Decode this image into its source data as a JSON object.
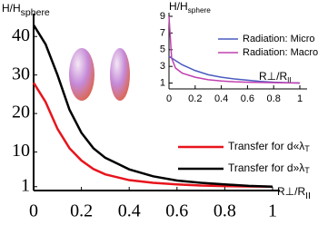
{
  "chart_data": [
    {
      "type": "line",
      "ylabel": {
        "main": "H/H",
        "sub": "sphere"
      },
      "xlabel": {
        "main": "R⊥/R",
        "sub": "II"
      },
      "xlim": [
        0,
        1
      ],
      "xticks": [
        0,
        0.2,
        0.4,
        0.6,
        0.8,
        1
      ],
      "ylim": [
        0,
        45
      ],
      "yticks": [
        1,
        10,
        20,
        30,
        40
      ],
      "series": [
        {
          "name": "Transfer for d«λ",
          "name_sub": "T",
          "color": "#e8141c",
          "x": [
            0,
            0.05,
            0.1,
            0.15,
            0.2,
            0.25,
            0.3,
            0.4,
            0.5,
            0.6,
            0.7,
            0.8,
            0.9,
            1
          ],
          "values": [
            28,
            23,
            16,
            11,
            7.8,
            5.6,
            4.2,
            2.7,
            2,
            1.6,
            1.3,
            1.15,
            1.05,
            1
          ]
        },
        {
          "name": "Transfer for d»λ",
          "name_sub": "T",
          "color": "#000000",
          "x": [
            0,
            0.05,
            0.1,
            0.15,
            0.2,
            0.25,
            0.3,
            0.4,
            0.5,
            0.6,
            0.7,
            0.8,
            0.9,
            1
          ],
          "values": [
            43,
            38,
            30,
            21,
            15,
            11,
            8.5,
            5.5,
            3.7,
            2.6,
            2,
            1.6,
            1.2,
            1
          ]
        }
      ]
    },
    {
      "type": "line",
      "ylabel": {
        "main": "H/H",
        "sub": "sphere"
      },
      "xlabel": {
        "main": "R⊥/R",
        "sub": "II"
      },
      "xlim": [
        0,
        1
      ],
      "xticks": [
        0,
        0.2,
        0.4,
        0.6,
        0.8,
        1
      ],
      "ylim": [
        0.3,
        9
      ],
      "yticks": [
        1,
        3,
        5,
        7,
        9
      ],
      "series": [
        {
          "name": "Radiation: Micro",
          "color": "#4a5bbf",
          "x": [
            0,
            0.05,
            0.1,
            0.2,
            0.3,
            0.4,
            0.5,
            0.6,
            0.7,
            0.8,
            0.9,
            1
          ],
          "values": [
            4.2,
            3.7,
            3.2,
            2.5,
            2,
            1.7,
            1.5,
            1.35,
            1.2,
            1.1,
            1.05,
            1
          ]
        },
        {
          "name": "Radiation: Macro",
          "color": "#c040b0",
          "x": [
            0,
            0.02,
            0.05,
            0.1,
            0.2,
            0.3,
            0.4,
            0.5,
            0.6,
            0.8,
            1
          ],
          "values": [
            9,
            4,
            2.8,
            2.2,
            1.7,
            1.4,
            1.25,
            1.15,
            1.1,
            1.05,
            1
          ]
        }
      ]
    }
  ]
}
